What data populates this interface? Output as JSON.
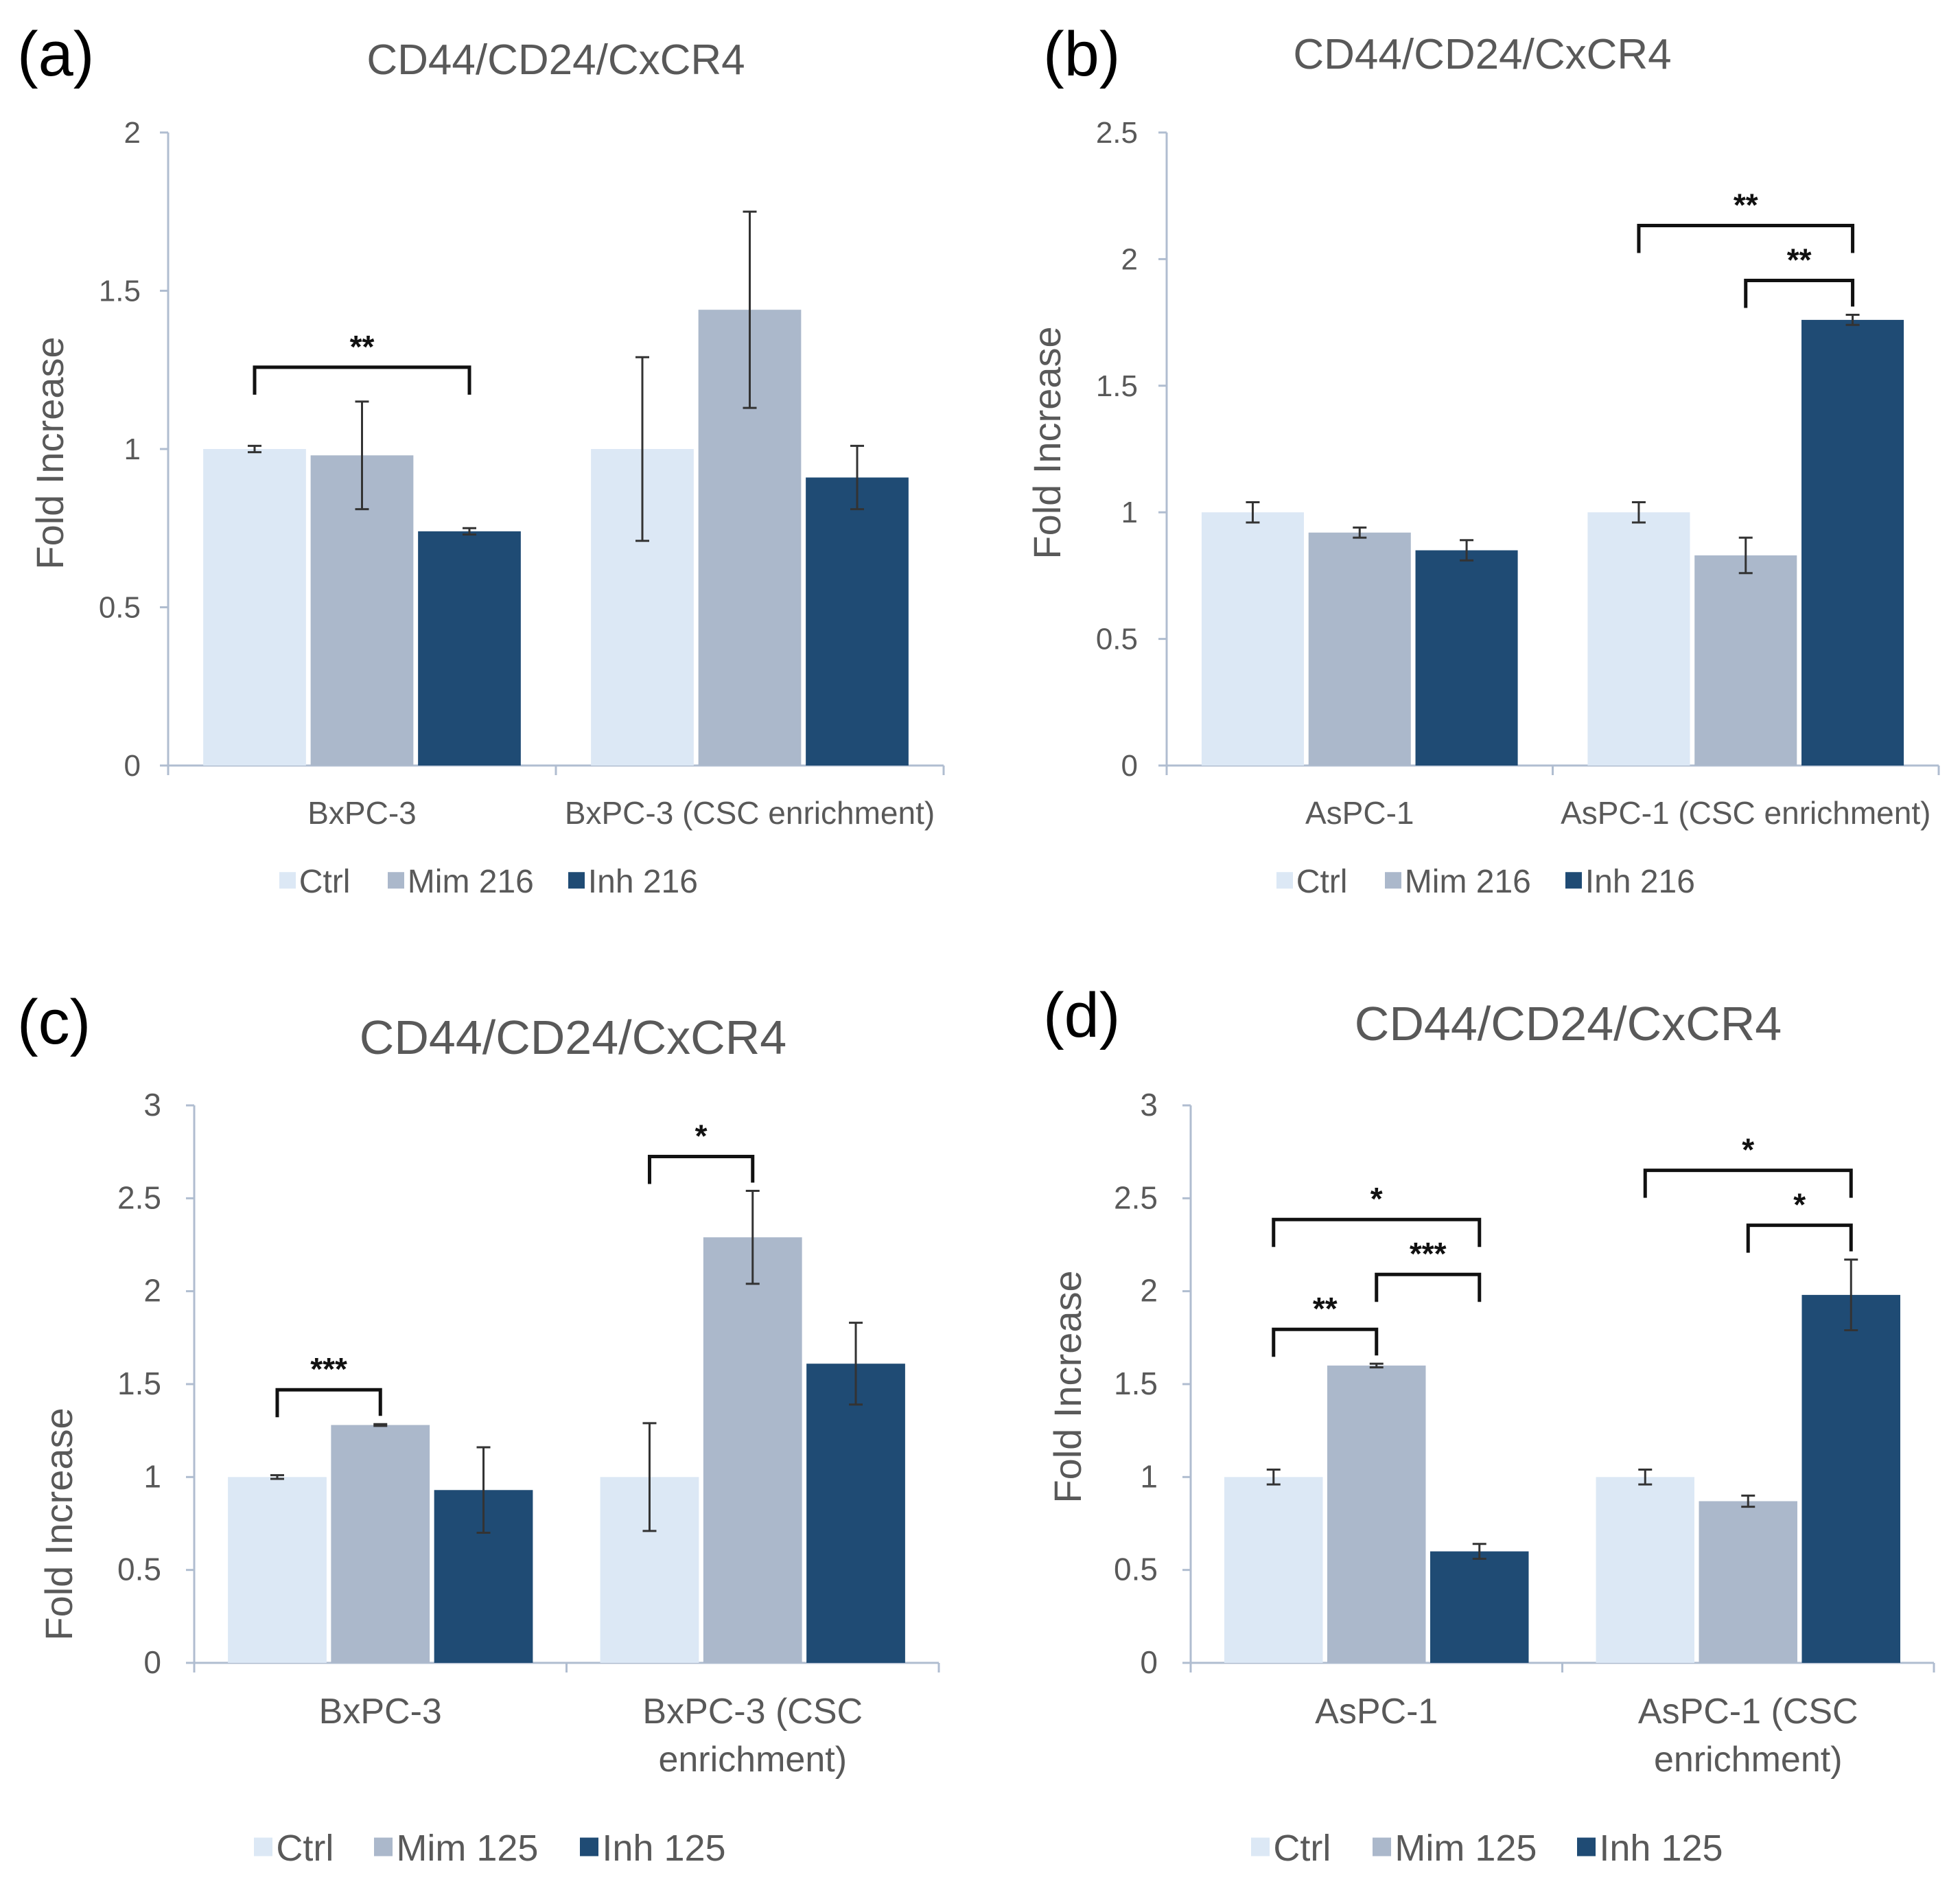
{
  "colors": {
    "ctrl": "#dce8f5",
    "mim": "#abb8cb",
    "inh": "#1f4b74",
    "axis": "#b0bdd0",
    "text": "#595959",
    "error": "#333333",
    "bracket": "#111111"
  },
  "chart_data": [
    {
      "panel": "(a)",
      "type": "bar",
      "title": "CD44/CD24/CxCR4",
      "ylabel": "Fold Increase",
      "xlabel": "",
      "ylim": [
        0,
        2
      ],
      "yticks": [
        "0",
        "0.5",
        "1",
        "1.5",
        "2"
      ],
      "categories": [
        "BxPC-3",
        "BxPC-3 (CSC enrichment)"
      ],
      "series": [
        {
          "name": "Ctrl",
          "values": [
            1.0,
            1.0
          ],
          "errors": [
            0.01,
            0.29
          ]
        },
        {
          "name": "Mim 216",
          "values": [
            0.98,
            1.44
          ],
          "errors": [
            0.17,
            0.31
          ]
        },
        {
          "name": "Inh 216",
          "values": [
            0.74,
            0.91
          ],
          "errors": [
            0.01,
            0.1
          ]
        }
      ],
      "significance": [
        {
          "label": "**",
          "category": 0,
          "from": 0,
          "to": 2
        }
      ],
      "legend": "bottom"
    },
    {
      "panel": "(b)",
      "type": "bar",
      "title": "CD44/CD24/CxCR4",
      "ylabel": "Fold Increase",
      "xlabel": "",
      "ylim": [
        0,
        2.5
      ],
      "yticks": [
        "0",
        "0.5",
        "1",
        "1.5",
        "2",
        "2.5"
      ],
      "categories": [
        "AsPC-1",
        "AsPC-1 (CSC enrichment)"
      ],
      "series": [
        {
          "name": "Ctrl",
          "values": [
            1.0,
            1.0
          ],
          "errors": [
            0.04,
            0.04
          ]
        },
        {
          "name": "Mim 216",
          "values": [
            0.92,
            0.83
          ],
          "errors": [
            0.02,
            0.07
          ]
        },
        {
          "name": "Inh 216",
          "values": [
            0.85,
            1.76
          ],
          "errors": [
            0.04,
            0.02
          ]
        }
      ],
      "significance": [
        {
          "label": "**",
          "category": 1,
          "from": 0,
          "to": 2
        },
        {
          "label": "**",
          "category": 1,
          "from": 1,
          "to": 2
        }
      ],
      "legend": "bottom"
    },
    {
      "panel": "(c)",
      "type": "bar",
      "title": "CD44/CD24/CxCR4",
      "ylabel": "Fold Increase",
      "xlabel": "",
      "ylim": [
        0,
        3
      ],
      "yticks": [
        "0",
        "0.5",
        "1",
        "1.5",
        "2",
        "2.5",
        "3"
      ],
      "categories": [
        "BxPC-3",
        "BxPC-3 (CSC|enrichment)"
      ],
      "series": [
        {
          "name": "Ctrl",
          "values": [
            1.0,
            1.0
          ],
          "errors": [
            0.01,
            0.29
          ]
        },
        {
          "name": "Mim 125",
          "values": [
            1.28,
            2.29
          ],
          "errors": [
            0.005,
            0.25
          ]
        },
        {
          "name": "Inh 125",
          "values": [
            0.93,
            1.61
          ],
          "errors": [
            0.23,
            0.22
          ]
        }
      ],
      "significance": [
        {
          "label": "***",
          "category": 0,
          "from": 0,
          "to": 1
        },
        {
          "label": "*",
          "category": 1,
          "from": 0,
          "to": 1
        }
      ],
      "legend": "bottom"
    },
    {
      "panel": "(d)",
      "type": "bar",
      "title": "CD44/CD24/CxCR4",
      "ylabel": "Fold Increase",
      "xlabel": "",
      "ylim": [
        0,
        3
      ],
      "yticks": [
        "0",
        "0.5",
        "1",
        "1.5",
        "2",
        "2.5",
        "3"
      ],
      "categories": [
        "AsPC-1",
        "AsPC-1 (CSC|enrichment)"
      ],
      "series": [
        {
          "name": "Ctrl",
          "values": [
            1.0,
            1.0
          ],
          "errors": [
            0.04,
            0.04
          ]
        },
        {
          "name": "Mim 125",
          "values": [
            1.6,
            0.87
          ],
          "errors": [
            0.01,
            0.03
          ]
        },
        {
          "name": "Inh 125",
          "values": [
            0.6,
            1.98
          ],
          "errors": [
            0.04,
            0.19
          ]
        }
      ],
      "significance": [
        {
          "label": "*",
          "category": 0,
          "from": 0,
          "to": 2
        },
        {
          "label": "**",
          "category": 0,
          "from": 0,
          "to": 1
        },
        {
          "label": "***",
          "category": 0,
          "from": 1,
          "to": 2
        },
        {
          "label": "*",
          "category": 1,
          "from": 0,
          "to": 2
        },
        {
          "label": "*",
          "category": 1,
          "from": 1,
          "to": 2
        }
      ],
      "legend": "bottom"
    }
  ]
}
